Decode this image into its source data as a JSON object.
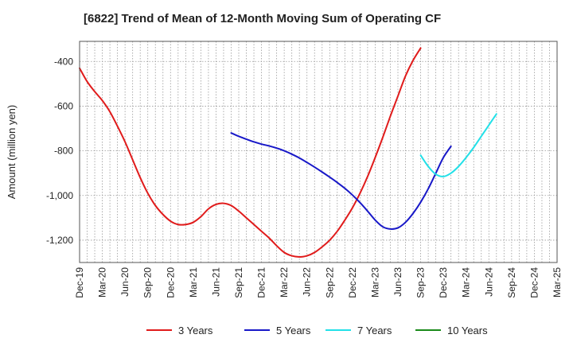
{
  "chart_data": {
    "type": "line",
    "title": "[6822]  Trend of Mean of 12-Month Moving Sum of Operating CF",
    "xlabel": "",
    "ylabel": "Amount (million yen)",
    "ylim": [
      -1300,
      -310
    ],
    "yticks": [
      -1200,
      -1000,
      -800,
      -600,
      -400
    ],
    "ytick_labels": [
      "-1,200",
      "-1,000",
      "-800",
      "-600",
      "-400"
    ],
    "x_months": [
      "Dec-19",
      "Jan-20",
      "Feb-20",
      "Mar-20",
      "Apr-20",
      "May-20",
      "Jun-20",
      "Jul-20",
      "Aug-20",
      "Sep-20",
      "Oct-20",
      "Nov-20",
      "Dec-20",
      "Jan-21",
      "Feb-21",
      "Mar-21",
      "Apr-21",
      "May-21",
      "Jun-21",
      "Jul-21",
      "Aug-21",
      "Sep-21",
      "Oct-21",
      "Nov-21",
      "Dec-21",
      "Jan-22",
      "Feb-22",
      "Mar-22",
      "Apr-22",
      "May-22",
      "Jun-22",
      "Jul-22",
      "Aug-22",
      "Sep-22",
      "Oct-22",
      "Nov-22",
      "Dec-22",
      "Jan-23",
      "Feb-23",
      "Mar-23",
      "Apr-23",
      "May-23",
      "Jun-23",
      "Jul-23",
      "Aug-23",
      "Sep-23",
      "Oct-23",
      "Nov-23",
      "Dec-23",
      "Jan-24",
      "Feb-24",
      "Mar-24",
      "Apr-24",
      "May-24",
      "Jun-24",
      "Jul-24",
      "Aug-24",
      "Sep-24",
      "Oct-24",
      "Nov-24",
      "Dec-24",
      "Jan-25",
      "Feb-25",
      "Mar-25"
    ],
    "xtick_labels": [
      "Dec-19",
      "Mar-20",
      "Jun-20",
      "Sep-20",
      "Dec-20",
      "Mar-21",
      "Jun-21",
      "Sep-21",
      "Dec-21",
      "Mar-22",
      "Jun-22",
      "Sep-22",
      "Dec-22",
      "Mar-23",
      "Jun-23",
      "Sep-23",
      "Dec-23",
      "Mar-24",
      "Jun-24",
      "Sep-24",
      "Dec-24",
      "Mar-25"
    ],
    "series": [
      {
        "name": "3 Years",
        "color": "#e01b1b",
        "start": "Dec-19",
        "values": [
          -430,
          -490,
          -535,
          -575,
          -625,
          -690,
          -760,
          -840,
          -920,
          -990,
          -1045,
          -1085,
          -1115,
          -1130,
          -1130,
          -1120,
          -1095,
          -1060,
          -1040,
          -1035,
          -1045,
          -1070,
          -1100,
          -1130,
          -1160,
          -1190,
          -1225,
          -1255,
          -1270,
          -1275,
          -1270,
          -1255,
          -1230,
          -1200,
          -1160,
          -1110,
          -1055,
          -990,
          -915,
          -830,
          -740,
          -645,
          -555,
          -465,
          -395,
          -340
        ]
      },
      {
        "name": "5 Years",
        "color": "#1818c8",
        "start": "Aug-21",
        "values": [
          -720,
          -735,
          -748,
          -760,
          -770,
          -778,
          -788,
          -800,
          -815,
          -832,
          -852,
          -873,
          -895,
          -918,
          -942,
          -968,
          -998,
          -1032,
          -1070,
          -1110,
          -1140,
          -1150,
          -1145,
          -1120,
          -1080,
          -1030,
          -970,
          -900,
          -830,
          -780
        ]
      },
      {
        "name": "7 Years",
        "color": "#22e0e8",
        "start": "Sep-23",
        "values": [
          -820,
          -870,
          -905,
          -915,
          -900,
          -870,
          -830,
          -785,
          -735,
          -685,
          -635
        ]
      },
      {
        "name": "10 Years",
        "color": "#1a8a1a",
        "start": "Sep-24",
        "values": []
      }
    ]
  }
}
